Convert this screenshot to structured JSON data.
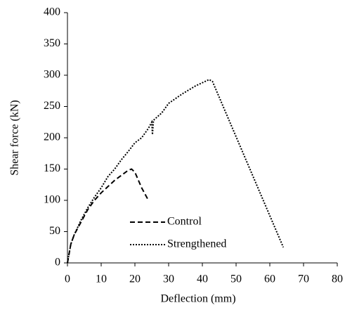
{
  "chart_data": {
    "type": "line",
    "x_label": "Deflection  (mm)",
    "y_label": "Shear force (kN)",
    "xlim": [
      0,
      80
    ],
    "xticks": [
      0,
      10,
      20,
      30,
      40,
      50,
      60,
      70,
      80
    ],
    "ylim": [
      0,
      400
    ],
    "yticks": [
      0,
      50,
      100,
      150,
      200,
      250,
      300,
      350,
      400
    ],
    "grid": false,
    "legend": "lower center",
    "series": [
      {
        "name": "Control",
        "color": "#000000",
        "linestyle": "dashed",
        "x": [
          0,
          1,
          2,
          4,
          6,
          8,
          10,
          12,
          14,
          16,
          18,
          19,
          20,
          22,
          24
        ],
        "values": [
          0,
          30,
          45,
          65,
          85,
          100,
          112,
          122,
          132,
          140,
          148,
          150,
          145,
          120,
          100
        ]
      },
      {
        "name": "Strengthened",
        "color": "#000000",
        "linestyle": "dotted",
        "x": [
          0,
          1,
          2,
          4,
          6,
          8,
          10,
          12,
          14,
          16,
          18,
          20,
          22,
          24,
          25,
          25.2,
          25.5,
          28,
          30,
          34,
          38,
          42,
          43,
          64
        ],
        "values": [
          0,
          30,
          45,
          68,
          88,
          105,
          120,
          138,
          150,
          165,
          178,
          192,
          200,
          215,
          225,
          205,
          228,
          240,
          255,
          270,
          283,
          293,
          290,
          25
        ]
      }
    ]
  }
}
